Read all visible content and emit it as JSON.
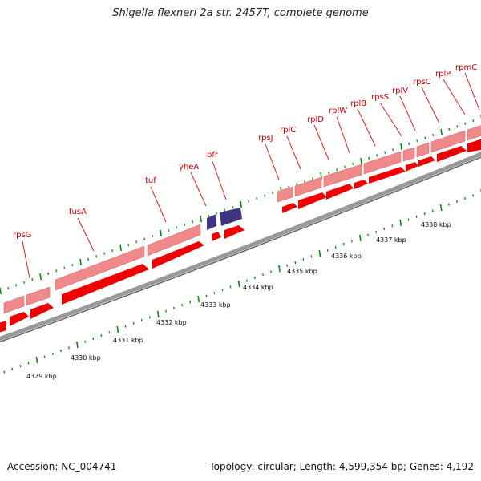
{
  "title": "Shigella flexneri 2a str. 2457T, complete genome",
  "footer": {
    "accession": "Accession: NC_004741",
    "summary": "Topology: circular; Length: 4,599,354 bp; Genes: 4,192"
  },
  "colors": {
    "forward_gene_light": "#f28a8a",
    "forward_gene_dark": "#ee0000",
    "other_gene": "#3d3580",
    "backbone": "#888888",
    "tick": "#118811",
    "label": "#cc0000"
  },
  "genes": [
    {
      "label": "rpsG"
    },
    {
      "label": "fusA"
    },
    {
      "label": "tuf"
    },
    {
      "label": "yheA"
    },
    {
      "label": "bfr"
    },
    {
      "label": "rpsJ"
    },
    {
      "label": "rplC"
    },
    {
      "label": "rplD"
    },
    {
      "label": "rplW"
    },
    {
      "label": "rplB"
    },
    {
      "label": "rpsS"
    },
    {
      "label": "rplV"
    },
    {
      "label": "rpsC"
    },
    {
      "label": "rplP"
    },
    {
      "label": "rpmC"
    }
  ],
  "kbp_labels": [
    "4329 kbp",
    "4330 kbp",
    "4331 kbp",
    "4332 kbp",
    "4333 kbp",
    "4334 kbp",
    "4335 kbp",
    "4336 kbp",
    "4337 kbp",
    "4338 kbp"
  ]
}
